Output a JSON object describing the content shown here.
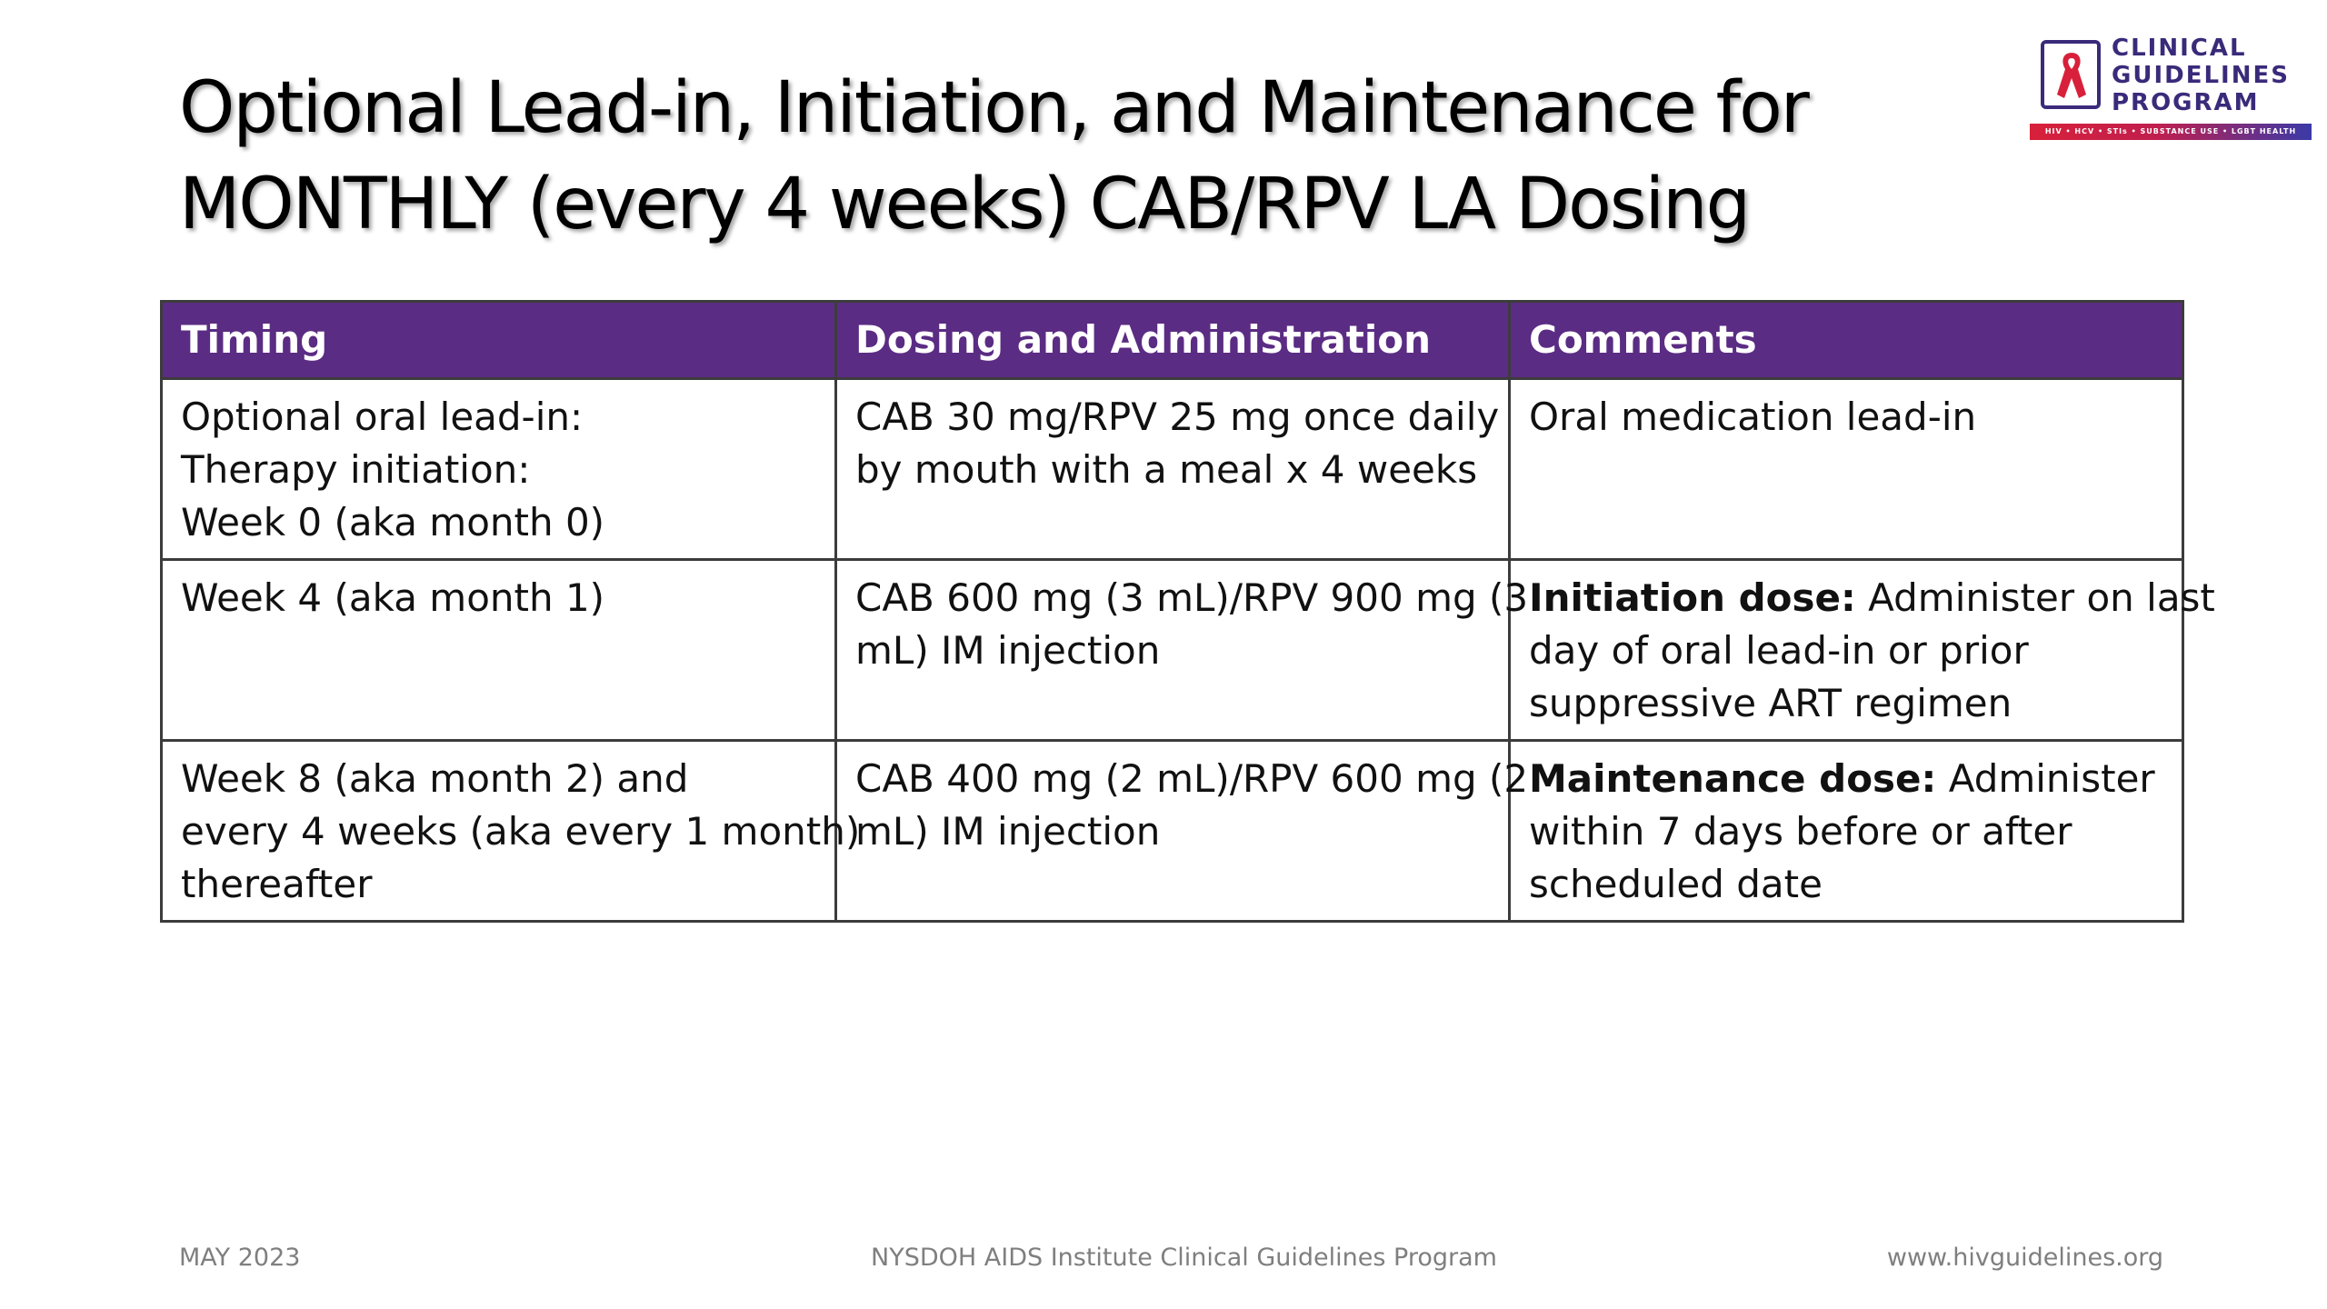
{
  "slide": {
    "title_lines": [
      "Optional Lead-in, Initiation, and Maintenance for",
      "MONTHLY (every 4 weeks) CAB/RPV LA Dosing"
    ]
  },
  "logo": {
    "lines": [
      "CLINICAL",
      "GUIDELINES",
      "PROGRAM"
    ],
    "tagline": "HIV • HCV • STIs • SUBSTANCE USE • LGBT HEALTH",
    "colors": {
      "primary": "#3a2a7a",
      "ribbon": "#d8203a"
    }
  },
  "table": {
    "header_color": "#5b2c83",
    "headers": [
      "Timing",
      "Dosing and Administration",
      "Comments"
    ],
    "rows": [
      {
        "timing": [
          "Optional oral lead-in:",
          "Therapy initiation:",
          "Week 0 (aka month 0)"
        ],
        "dosing": [
          "CAB 30 mg/RPV 25 mg once daily",
          "by mouth with a meal x 4 weeks"
        ],
        "comments": {
          "bold": "",
          "lines": [
            "Oral medication lead-in"
          ]
        }
      },
      {
        "timing": [
          "Week 4 (aka month 1)"
        ],
        "dosing": [
          "CAB 600 mg (3 mL)/RPV 900 mg (3",
          "mL) IM injection"
        ],
        "comments": {
          "bold": "Initiation dose:",
          "first_rest": " Administer on last",
          "lines": [
            "day of oral lead-in or prior",
            "suppressive ART regimen"
          ]
        }
      },
      {
        "timing": [
          "Week 8 (aka month 2) and",
          "every 4 weeks (aka every 1 month)",
          "thereafter"
        ],
        "dosing": [
          "CAB 400 mg (2 mL)/RPV 600 mg (2",
          "mL) IM injection"
        ],
        "comments": {
          "bold": "Maintenance dose:",
          "first_rest": " Administer",
          "lines": [
            "within 7 days before or after",
            "scheduled date"
          ]
        }
      }
    ]
  },
  "footer": {
    "date": "MAY 2023",
    "program": "NYSDOH AIDS Institute Clinical Guidelines Program",
    "website": "www.hivguidelines.org"
  }
}
